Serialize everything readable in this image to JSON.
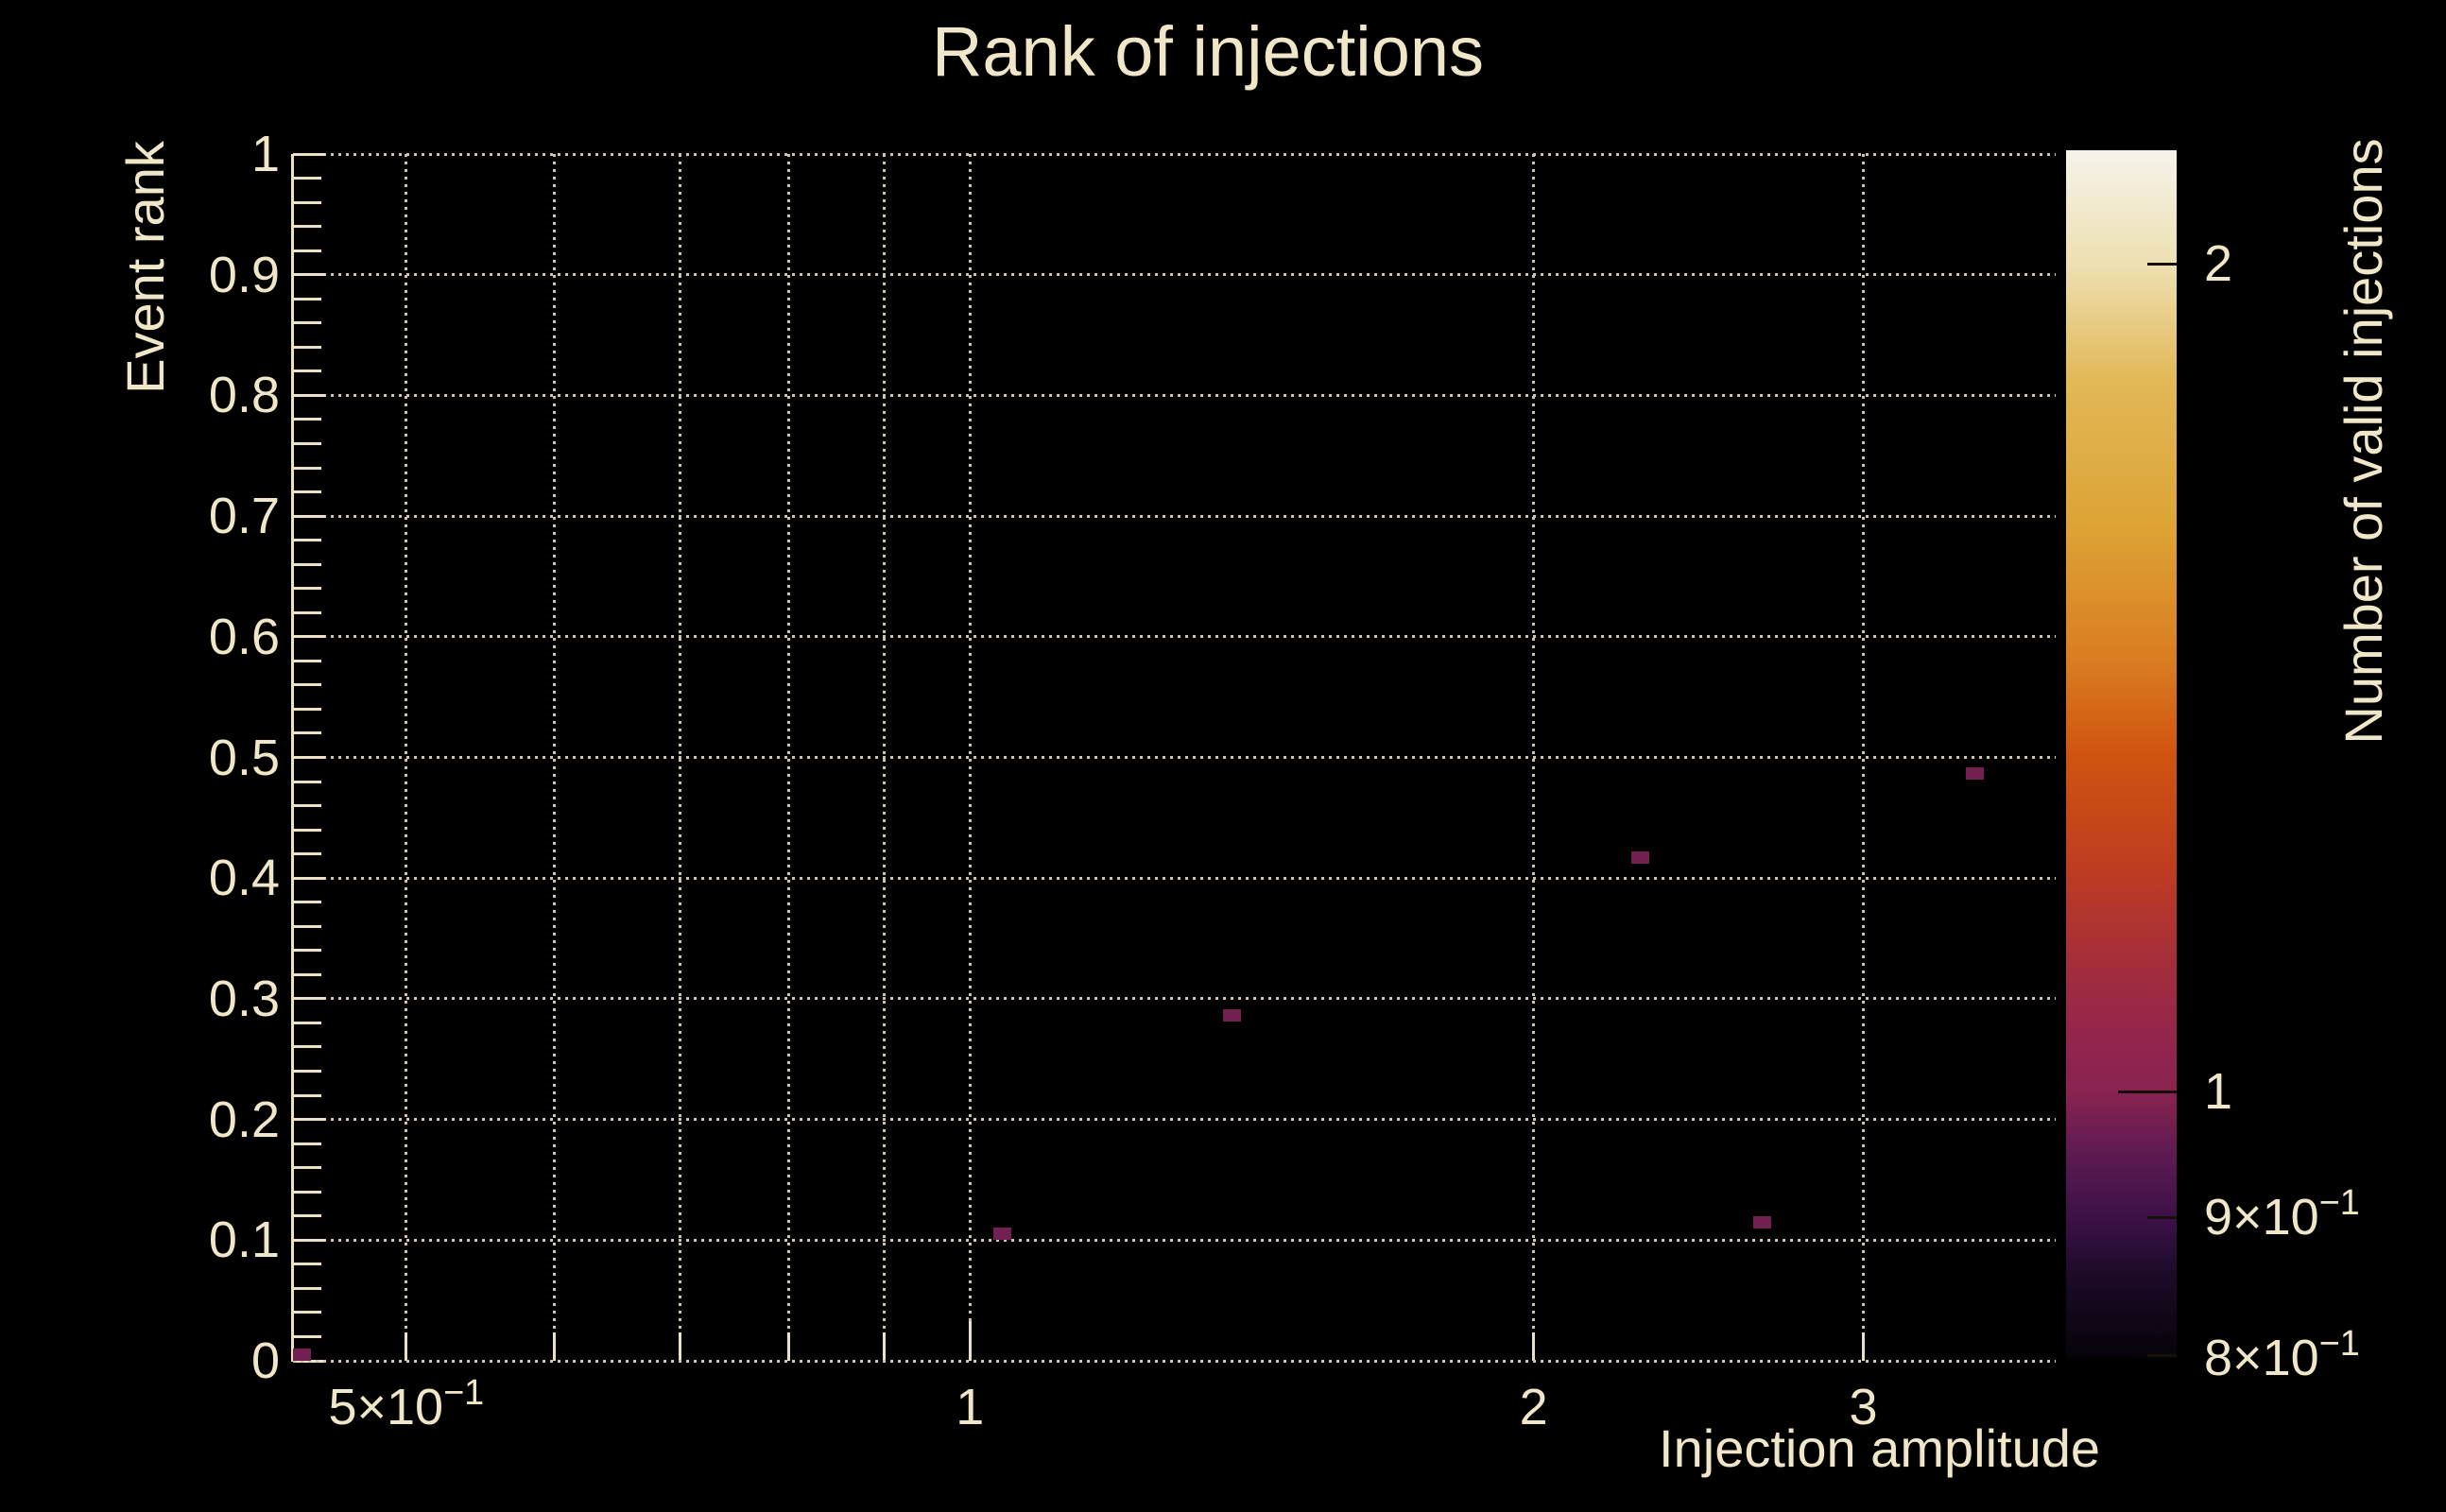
{
  "title": "Rank of injections",
  "colors": {
    "background": "#000000",
    "text": "#f0e6c8",
    "axis": "#ece1c0",
    "grid": "#cfc5a6",
    "marker": "#722052",
    "colorbar_tick": "#16100a"
  },
  "chart_data": {
    "type": "heatmap",
    "title": "Rank of injections",
    "xlabel": "Injection amplitude",
    "ylabel": "Event rank",
    "zlabel": "Number of valid injections",
    "xscale": "log",
    "xlim": [
      0.435,
      3.8
    ],
    "ylim": [
      0,
      1
    ],
    "zscale": "log",
    "zlim": [
      0.8,
      2.2
    ],
    "grid": "dotted",
    "legend_position": "right-colorbar",
    "x_ticks": [
      {
        "value": 0.5,
        "base": "5×10",
        "exp": "−1",
        "major": false
      },
      {
        "value": 0.6,
        "base": "",
        "exp": "",
        "major": false
      },
      {
        "value": 0.7,
        "base": "",
        "exp": "",
        "major": false
      },
      {
        "value": 0.8,
        "base": "",
        "exp": "",
        "major": false
      },
      {
        "value": 0.9,
        "base": "",
        "exp": "",
        "major": false
      },
      {
        "value": 1,
        "base": "1",
        "exp": "",
        "major": true
      },
      {
        "value": 2,
        "base": "2",
        "exp": "",
        "major": false
      },
      {
        "value": 3,
        "base": "3",
        "exp": "",
        "major": false
      }
    ],
    "y_ticks": [
      {
        "value": 0.0,
        "label": "0"
      },
      {
        "value": 0.1,
        "label": "0.1"
      },
      {
        "value": 0.2,
        "label": "0.2"
      },
      {
        "value": 0.3,
        "label": "0.3"
      },
      {
        "value": 0.4,
        "label": "0.4"
      },
      {
        "value": 0.5,
        "label": "0.5"
      },
      {
        "value": 0.6,
        "label": "0.6"
      },
      {
        "value": 0.7,
        "label": "0.7"
      },
      {
        "value": 0.8,
        "label": "0.8"
      },
      {
        "value": 0.9,
        "label": "0.9"
      },
      {
        "value": 1.0,
        "label": "1"
      }
    ],
    "y_minor_step": 0.02,
    "points": [
      {
        "x": 0.44,
        "y": 0.005,
        "count": 1
      },
      {
        "x": 1.04,
        "y": 0.105,
        "count": 1
      },
      {
        "x": 1.38,
        "y": 0.286,
        "count": 1
      },
      {
        "x": 2.28,
        "y": 0.417,
        "count": 1
      },
      {
        "x": 2.65,
        "y": 0.115,
        "count": 1
      },
      {
        "x": 3.44,
        "y": 0.487,
        "count": 1
      }
    ],
    "colorbar_ticks": [
      {
        "value": 2,
        "base": "2",
        "exp": "",
        "major": false
      },
      {
        "value": 1,
        "base": "1",
        "exp": "",
        "major": true
      },
      {
        "value": 0.9,
        "base": "9×10",
        "exp": "−1",
        "major": false
      },
      {
        "value": 0.8,
        "base": "8×10",
        "exp": "−1",
        "major": false
      }
    ],
    "colorbar_gradient": [
      {
        "pos": 0.0,
        "color": "#f6f3eb"
      },
      {
        "pos": 0.095,
        "color": "#eee0b2"
      },
      {
        "pos": 0.19,
        "color": "#e2b857"
      },
      {
        "pos": 0.31,
        "color": "#dda336"
      },
      {
        "pos": 0.42,
        "color": "#da7e22"
      },
      {
        "pos": 0.5,
        "color": "#d05410"
      },
      {
        "pos": 0.59,
        "color": "#c03d20"
      },
      {
        "pos": 0.67,
        "color": "#a52e3a"
      },
      {
        "pos": 0.735,
        "color": "#93254d"
      },
      {
        "pos": 0.78,
        "color": "#892350"
      },
      {
        "pos": 0.83,
        "color": "#5e1b51"
      },
      {
        "pos": 0.885,
        "color": "#3b1147"
      },
      {
        "pos": 0.93,
        "color": "#1d0b29"
      },
      {
        "pos": 1.0,
        "color": "#070309"
      }
    ]
  }
}
